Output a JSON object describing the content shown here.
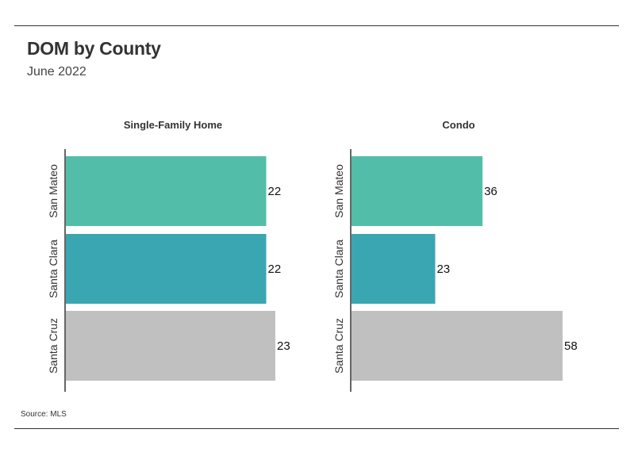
{
  "header": {
    "title": "DOM by County",
    "subtitle": "June 2022"
  },
  "footer": {
    "source": "Source: MLS"
  },
  "colors": {
    "san_mateo": "#52bea9",
    "santa_clara": "#3aa6b2",
    "santa_cruz": "#c0c0c0",
    "axis": "#333333",
    "text": "#333333"
  },
  "chart_data": [
    {
      "type": "bar",
      "orientation": "horizontal",
      "title": "Single-Family Home",
      "categories": [
        "San Mateo",
        "Santa Clara",
        "Santa Cruz"
      ],
      "values": [
        22,
        22,
        23
      ],
      "colors": [
        "#52bea9",
        "#3aa6b2",
        "#c0c0c0"
      ],
      "xlim": [
        0,
        23
      ],
      "grid": false
    },
    {
      "type": "bar",
      "orientation": "horizontal",
      "title": "Condo",
      "categories": [
        "San Mateo",
        "Santa Clara",
        "Santa Cruz"
      ],
      "values": [
        36,
        23,
        58
      ],
      "colors": [
        "#52bea9",
        "#3aa6b2",
        "#c0c0c0"
      ],
      "xlim": [
        0,
        58
      ],
      "grid": false
    }
  ]
}
